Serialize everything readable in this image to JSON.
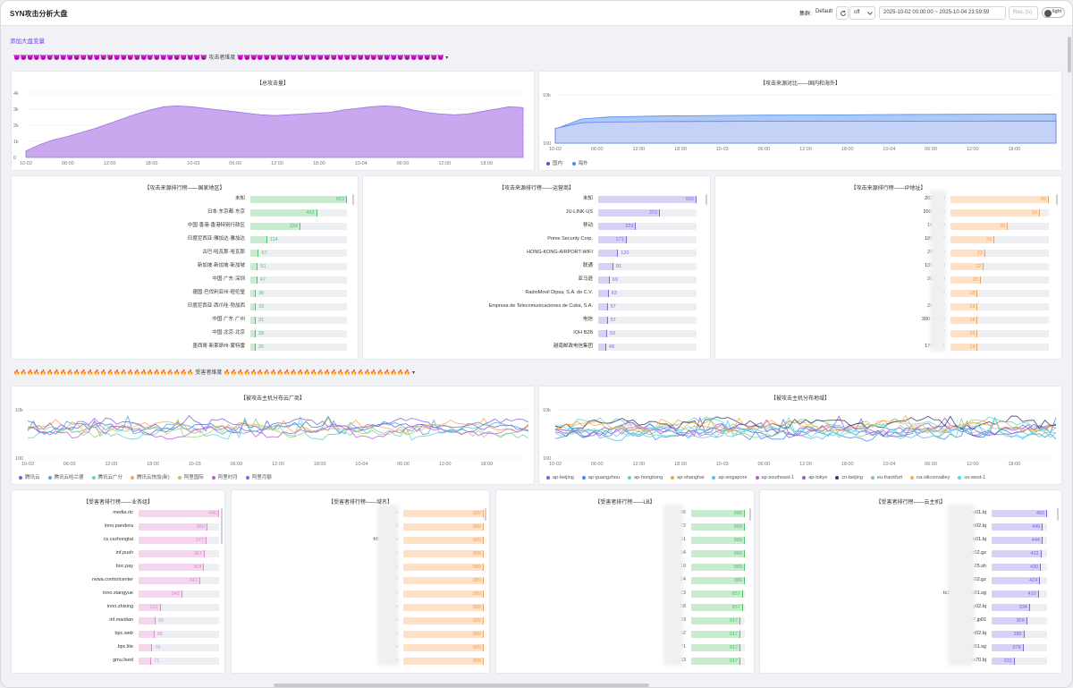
{
  "app": {
    "title": "SYN攻击分析大盘"
  },
  "toolbar": {
    "cluster_label": "集群:",
    "cluster_value": "Default",
    "refresh_interval": "off",
    "time_range": "2025-10-02 00:00:00 ~ 2025-10-04 23:59:59",
    "resolution_placeholder": "Res. (s)",
    "theme_toggle": "light"
  },
  "add_variable": "添加大盘变量",
  "sections": {
    "attacker": {
      "emoji": "😈😈😈😈😈😈😈😈😈😈😈😈😈😈😈😈😈😈😈😈😈😈😈😈😈😈😈😈😈",
      "title": "攻击者维度",
      "emoji2": "😈😈😈😈😈😈😈😈😈😈😈😈😈😈😈😈😈😈😈😈😈😈😈😈😈😈😈😈😈😈😈"
    },
    "victim": {
      "emoji": "🔥🔥🔥🔥🔥🔥🔥🔥🔥🔥🔥🔥🔥🔥🔥🔥🔥🔥🔥🔥🔥🔥🔥🔥🔥🔥🔥",
      "title": "受害者维度",
      "emoji2": "🔥🔥🔥🔥🔥🔥🔥🔥🔥🔥🔥🔥🔥🔥🔥🔥🔥🔥🔥🔥🔥🔥🔥🔥🔥🔥🔥🔥"
    }
  },
  "icons": {
    "refresh": "refresh-icon",
    "dropdown": "chevron-down-icon",
    "theme": "toggle-icon"
  },
  "colors": {
    "accent": "#6b47e0",
    "purple_area": "#c7a6ee",
    "blue_area": "#8fb4f5",
    "green": "#c9ecd1",
    "green_edge": "#52c26b",
    "purple_bar": "#d6d2f5",
    "purple_edge": "#7a6be0",
    "orange": "#fde2c8",
    "orange_edge": "#f4a257",
    "pink": "#f5d6ef",
    "pink_edge": "#e38ad3"
  },
  "chart_data": [
    {
      "id": "total",
      "type": "area",
      "title": "【总攻击量】",
      "y_ticks": [
        "4k",
        "3k",
        "2k",
        "1k",
        "0"
      ],
      "x_ticks": [
        "10-02",
        "06:00",
        "12:00",
        "18:00",
        "10-03",
        "06:00",
        "12:00",
        "18:00",
        "10-04",
        "06:00",
        "12:00",
        "18:00"
      ],
      "x": [
        0,
        2,
        4,
        6,
        8,
        10,
        12,
        14,
        16,
        18,
        20,
        22,
        24,
        26,
        28,
        30,
        32,
        34,
        36,
        38,
        40,
        42,
        44,
        46,
        48,
        50,
        52,
        54,
        56,
        58,
        60,
        62,
        64,
        66,
        68,
        70,
        72
      ],
      "values": [
        400,
        800,
        1100,
        1300,
        1550,
        1800,
        2100,
        2400,
        2700,
        2950,
        3150,
        3200,
        3150,
        3050,
        2950,
        2850,
        2750,
        2650,
        2600,
        2650,
        2700,
        2750,
        2800,
        2950,
        3050,
        3150,
        3200,
        3150,
        2950,
        2800,
        2700,
        2650,
        2700,
        2850,
        3000,
        3150,
        3100
      ]
    },
    {
      "id": "source_compare",
      "type": "area",
      "title": "【攻击来源对比——国内和海外】",
      "y_ticks": [
        "10k",
        "100"
      ],
      "log": true,
      "x_ticks": [
        "10-02",
        "06:00",
        "12:00",
        "18:00",
        "10-03",
        "06:00",
        "12:00",
        "18:00",
        "10-04",
        "06:00",
        "12:00",
        "18:00"
      ],
      "series": [
        {
          "name": "国内",
          "values": [
            50,
            220,
            270,
            290,
            300,
            310,
            315,
            320,
            320,
            325,
            330,
            330,
            335,
            335,
            340,
            340,
            340,
            345,
            345,
            350
          ]
        },
        {
          "name": "海外",
          "values": [
            40,
            600,
            1000,
            1200,
            1300,
            1400,
            1500,
            1600,
            1650,
            1700,
            1750,
            1800,
            1900,
            1950,
            2000,
            2050,
            2100,
            2150,
            2200,
            2250
          ]
        }
      ]
    },
    {
      "id": "host_cloud",
      "type": "line",
      "title": "【被攻击主机分布云厂商】",
      "y_ticks": [
        "10k",
        "100"
      ],
      "log": true,
      "x_ticks": [
        "10-02",
        "06:00",
        "12:00",
        "18:00",
        "10-03",
        "06:00",
        "12:00",
        "18:00",
        "10-04",
        "06:00",
        "12:00",
        "18:00"
      ],
      "series": [
        {
          "name": "腾讯云"
        },
        {
          "name": "腾讯云哈兰德"
        },
        {
          "name": "腾讯云广分"
        },
        {
          "name": "腾讯云快加(新)"
        },
        {
          "name": "阿里国际"
        },
        {
          "name": "阿里时月"
        },
        {
          "name": "阿里月额"
        }
      ]
    },
    {
      "id": "host_region",
      "type": "line",
      "title": "【被攻击主机分布地域】",
      "y_ticks": [
        "10k",
        "100"
      ],
      "log": true,
      "x_ticks": [
        "10-02",
        "06:00",
        "12:00",
        "18:00",
        "10-03",
        "06:00",
        "12:00",
        "18:00",
        "10-04",
        "06:00",
        "12:00",
        "18:00"
      ],
      "series": [
        {
          "name": "ap-beijing"
        },
        {
          "name": "ap-guangzhou"
        },
        {
          "name": "ap-hongkong"
        },
        {
          "name": "ap-shanghai"
        },
        {
          "name": "ap-singapore"
        },
        {
          "name": "ap-southeast-1"
        },
        {
          "name": "ap-tokyo"
        },
        {
          "name": "cn-beijing"
        },
        {
          "name": "eu-frankfurt"
        },
        {
          "name": "na-siliconvalley"
        },
        {
          "name": "us-west-1"
        }
      ]
    }
  ],
  "rankings": {
    "country": {
      "title": "【攻击来源排行榜——国家地区】",
      "max": 653,
      "rows": [
        {
          "label": "未知",
          "value": 653
        },
        {
          "label": "日本·东京都·东京",
          "value": 452
        },
        {
          "label": "中国·香港·香港特别行政区",
          "value": 339
        },
        {
          "label": "印度尼西亚·雅加达·雅加达",
          "value": 114
        },
        {
          "label": "古巴·哈瓦那·哈瓦那",
          "value": 57
        },
        {
          "label": "新加坡·新加坡·新加坡",
          "value": 51
        },
        {
          "label": "中国·广东·深圳",
          "value": 47
        },
        {
          "label": "德国·巴伐利亚州·纽伦堡",
          "value": 36
        },
        {
          "label": "印度尼西亚·西爪哇·勃加西",
          "value": 33
        },
        {
          "label": "中国·广东·广州",
          "value": 31
        },
        {
          "label": "中国·北京·北京",
          "value": 28
        },
        {
          "label": "墨西哥·新莱昂州·蒙特雷",
          "value": 26
        }
      ]
    },
    "isp": {
      "title": "【攻击来源排行榜——运营商】",
      "max": 593,
      "rows": [
        {
          "label": "未知",
          "value": 593
        },
        {
          "label": "JU-LINK-US",
          "value": 372
        },
        {
          "label": "移动",
          "value": 229
        },
        {
          "label": "Prime Security Corp.",
          "value": 171
        },
        {
          "label": "HONG-KONG-AIRPORT-WIFI",
          "value": 120
        },
        {
          "label": "联通",
          "value": 91
        },
        {
          "label": "亚马逊",
          "value": 69
        },
        {
          "label": "RadioMovil Dipsa, S.A. de C.V.",
          "value": 63
        },
        {
          "label": "Empresa de Telecomunicaciones de Cuba, S.A.",
          "value": 57
        },
        {
          "label": "电信",
          "value": 57
        },
        {
          "label": "IOH B2B",
          "value": 53
        },
        {
          "label": "越南邮政电信集团",
          "value": 48
        }
      ]
    },
    "ip": {
      "title": "【攻击来源排行榜——IP地址】",
      "max": 65,
      "rows": [
        {
          "label": "202.     .240",
          "value": 65
        },
        {
          "label": "200.     .4.15",
          "value": 59
        },
        {
          "label": "162.     .49",
          "value": 38
        },
        {
          "label": "189.     .177",
          "value": 29
        },
        {
          "label": "200.     .45",
          "value": 23
        },
        {
          "label": "139.     .249",
          "value": 22
        },
        {
          "label": "201.     .48",
          "value": 20
        },
        {
          "label": "1     .62",
          "value": 18
        },
        {
          "label": "200.     .47",
          "value": 18
        },
        {
          "label": "200.4     .245",
          "value": 18
        },
        {
          "label": "10     .47",
          "value": 18
        },
        {
          "label": "177.     .171",
          "value": 18
        }
      ]
    },
    "biz": {
      "title": "【受害者排行榜——业务组】",
      "max": 446,
      "rows": [
        {
          "label": "media.rtc",
          "value": 446
        },
        {
          "label": "inno.pandora",
          "value": 380
        },
        {
          "label": "cs.cszhongtai",
          "value": 377
        },
        {
          "label": "inf.push",
          "value": 367
        },
        {
          "label": "boc.pay",
          "value": 364
        },
        {
          "label": "nvwa.controlcenter",
          "value": 341
        },
        {
          "label": "inno.xiangyue",
          "value": 242
        },
        {
          "label": "inno.zhixing",
          "value": 122
        },
        {
          "label": "inf.maidian",
          "value": 95
        },
        {
          "label": "bpc.web",
          "value": 88
        },
        {
          "label": "bpc.lite",
          "value": 76
        },
        {
          "label": "gmu.feed",
          "value": 71
        }
      ]
    },
    "domain": {
      "title": "【受害者排行榜——域名】",
      "max": 889,
      "rows": [
        {
          "label": "i8.ka",
          "value": 889
        },
        {
          "label": "i8",
          "value": 889
        },
        {
          "label": "h5-orgin.ka",
          "value": 889
        },
        {
          "label": "h5-orgi",
          "value": 889
        },
        {
          "label": "h5-o",
          "value": 889
        },
        {
          "label": "h5-or",
          "value": 889
        },
        {
          "label": "ke",
          "value": 889
        },
        {
          "label": "ke",
          "value": 889
        },
        {
          "label": "kefu.ka",
          "value": 889
        },
        {
          "label": "kefu",
          "value": 889
        },
        {
          "label": "kefua",
          "value": 889
        },
        {
          "label": "kefua",
          "value": 889
        }
      ]
    },
    "lb": {
      "title": "【受害者排行榜——LB】",
      "max": 889,
      "rows": [
        {
          "label": "11     186",
          "value": 889
        },
        {
          "label": "11     172",
          "value": 889
        },
        {
          "label": "140     151",
          "value": 889
        },
        {
          "label": "192     154",
          "value": 889
        },
        {
          "label": "82     210",
          "value": 889
        },
        {
          "label": "82     124",
          "value": 889
        },
        {
          "label": "11     123",
          "value": 857
        },
        {
          "label": "159     158",
          "value": 857
        },
        {
          "label": "1     .33",
          "value": 817
        },
        {
          "label": "129     152",
          "value": 817
        },
        {
          "label": "3     171",
          "value": 817
        },
        {
          "label": "     133",
          "value": 817
        }
      ]
    },
    "cloudhost": {
      "title": "【受害者排行榜——云主机】",
      "max": 483,
      "rows": [
        {
          "label": "tx3-in      oxy01.bj",
          "value": 483
        },
        {
          "label": "tx5-i      eb02.bj",
          "value": 446
        },
        {
          "label": "tx4-      eb01.bj",
          "value": 444
        },
        {
          "label": "tx3-in      oxy02.gz",
          "value": 433
        },
        {
          "label": "      s-25.sh",
          "value": 430
        },
        {
          "label": "tx3-in      oxy02.gz",
          "value": 424
        },
        {
          "label": "tx3-inf-uplo      mi01.sg",
          "value": 410
        },
        {
          "label": "tx5-in      oxy02.bj",
          "value": 334
        },
        {
          "label": "tx1-      07.jp01",
          "value": 309
        },
        {
          "label": "all-g      nt02.bj",
          "value": 285
        },
        {
          "label": "tx4-oak      xsl01.sg",
          "value": 278
        },
        {
          "label": "      -cls70.bj",
          "value": 201
        }
      ]
    }
  }
}
